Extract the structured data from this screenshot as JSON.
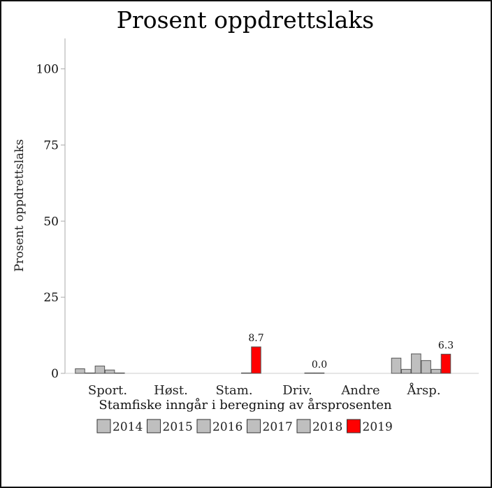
{
  "chart_data": {
    "type": "bar",
    "title": "Prosent oppdrettslaks",
    "xlabel": "Stamfiske inngår i beregning av årsprosenten",
    "ylabel": "Prosent oppdrettslaks",
    "ylim": [
      0,
      110
    ],
    "yticks": [
      0,
      25,
      50,
      75,
      100
    ],
    "categories": [
      "Sport.",
      "Høst.",
      "Stam.",
      "Driv.",
      "Andre",
      "Årsp."
    ],
    "series": [
      {
        "name": "2014",
        "color": "#bfbfbf",
        "values": [
          1.5,
          null,
          null,
          null,
          null,
          5.0
        ]
      },
      {
        "name": "2015",
        "color": "#bfbfbf",
        "values": [
          0.0,
          null,
          null,
          null,
          null,
          1.3
        ]
      },
      {
        "name": "2016",
        "color": "#bfbfbf",
        "values": [
          2.4,
          null,
          null,
          null,
          null,
          6.4
        ]
      },
      {
        "name": "2017",
        "color": "#bfbfbf",
        "values": [
          1.1,
          null,
          null,
          null,
          null,
          4.2
        ]
      },
      {
        "name": "2018",
        "color": "#bfbfbf",
        "values": [
          0.1,
          null,
          0.1,
          0.1,
          null,
          1.3
        ]
      },
      {
        "name": "2019",
        "color": "#ff0000",
        "values": [
          null,
          null,
          8.7,
          0.0,
          null,
          6.3
        ]
      }
    ],
    "data_labels": [
      {
        "series": "2019",
        "category": "Stam.",
        "text": "8.7"
      },
      {
        "series": "2019",
        "category": "Driv.",
        "text": "0.0"
      },
      {
        "series": "2019",
        "category": "Årsp.",
        "text": "6.3"
      }
    ],
    "legend_position": "bottom",
    "grid": false
  }
}
